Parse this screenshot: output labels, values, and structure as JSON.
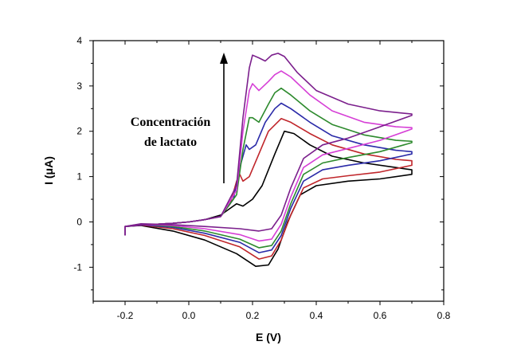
{
  "chart_data": {
    "type": "line",
    "title": "",
    "xlabel": "E (V)",
    "ylabel": "I (μA)",
    "xlim": [
      -0.3,
      0.8
    ],
    "ylim": [
      -1.75,
      4
    ],
    "xticks": [
      "-0.2",
      "0.0",
      "0.2",
      "0.4",
      "0.6",
      "0.8"
    ],
    "xtick_values": [
      -0.2,
      0.0,
      0.2,
      0.4,
      0.6,
      0.8
    ],
    "yticks": [
      "-1",
      "0",
      "1",
      "2",
      "3",
      "4"
    ],
    "ytick_values": [
      -1,
      0,
      1,
      2,
      3,
      4
    ],
    "grid": false,
    "legend": "none",
    "annotation": {
      "lines": [
        "Concentración",
        "de lactato"
      ],
      "arrow": "up"
    },
    "series": [
      {
        "color": "#000000",
        "forward": [
          [
            -0.2,
            -0.3
          ],
          [
            -0.2,
            -0.1
          ],
          [
            -0.15,
            -0.07
          ],
          [
            -0.05,
            -0.03
          ],
          [
            0.0,
            0.0
          ],
          [
            0.05,
            0.05
          ],
          [
            0.1,
            0.15
          ],
          [
            0.13,
            0.3
          ],
          [
            0.15,
            0.4
          ],
          [
            0.17,
            0.35
          ],
          [
            0.2,
            0.5
          ],
          [
            0.23,
            0.8
          ],
          [
            0.27,
            1.5
          ],
          [
            0.3,
            2.0
          ],
          [
            0.33,
            1.95
          ],
          [
            0.38,
            1.7
          ],
          [
            0.45,
            1.45
          ],
          [
            0.55,
            1.3
          ],
          [
            0.65,
            1.2
          ],
          [
            0.7,
            1.15
          ]
        ],
        "reverse": [
          [
            0.7,
            1.05
          ],
          [
            0.6,
            0.95
          ],
          [
            0.5,
            0.9
          ],
          [
            0.4,
            0.8
          ],
          [
            0.35,
            0.6
          ],
          [
            0.31,
            0.0
          ],
          [
            0.28,
            -0.6
          ],
          [
            0.25,
            -0.95
          ],
          [
            0.21,
            -0.98
          ],
          [
            0.15,
            -0.7
          ],
          [
            0.05,
            -0.4
          ],
          [
            -0.05,
            -0.2
          ],
          [
            -0.15,
            -0.08
          ],
          [
            -0.2,
            -0.1
          ]
        ]
      },
      {
        "color": "#c0262b",
        "forward": [
          [
            -0.2,
            -0.3
          ],
          [
            -0.2,
            -0.1
          ],
          [
            -0.15,
            -0.07
          ],
          [
            -0.05,
            -0.03
          ],
          [
            0.0,
            0.0
          ],
          [
            0.05,
            0.05
          ],
          [
            0.1,
            0.12
          ],
          [
            0.13,
            0.4
          ],
          [
            0.15,
            0.9
          ],
          [
            0.16,
            1.05
          ],
          [
            0.17,
            0.9
          ],
          [
            0.19,
            1.0
          ],
          [
            0.22,
            1.5
          ],
          [
            0.25,
            2.0
          ],
          [
            0.29,
            2.28
          ],
          [
            0.32,
            2.2
          ],
          [
            0.38,
            1.95
          ],
          [
            0.45,
            1.7
          ],
          [
            0.55,
            1.5
          ],
          [
            0.65,
            1.38
          ],
          [
            0.7,
            1.35
          ]
        ],
        "reverse": [
          [
            0.7,
            1.25
          ],
          [
            0.6,
            1.1
          ],
          [
            0.5,
            1.02
          ],
          [
            0.42,
            0.95
          ],
          [
            0.36,
            0.75
          ],
          [
            0.32,
            0.15
          ],
          [
            0.29,
            -0.4
          ],
          [
            0.26,
            -0.75
          ],
          [
            0.22,
            -0.82
          ],
          [
            0.16,
            -0.55
          ],
          [
            0.05,
            -0.3
          ],
          [
            -0.05,
            -0.15
          ],
          [
            -0.15,
            -0.07
          ],
          [
            -0.2,
            -0.1
          ]
        ]
      },
      {
        "color": "#2a2aa8",
        "forward": [
          [
            -0.2,
            -0.3
          ],
          [
            -0.2,
            -0.1
          ],
          [
            -0.15,
            -0.07
          ],
          [
            -0.05,
            -0.03
          ],
          [
            0.0,
            0.0
          ],
          [
            0.05,
            0.05
          ],
          [
            0.1,
            0.12
          ],
          [
            0.14,
            0.5
          ],
          [
            0.16,
            1.2
          ],
          [
            0.18,
            1.7
          ],
          [
            0.19,
            1.6
          ],
          [
            0.21,
            1.7
          ],
          [
            0.24,
            2.2
          ],
          [
            0.27,
            2.5
          ],
          [
            0.29,
            2.62
          ],
          [
            0.32,
            2.5
          ],
          [
            0.38,
            2.2
          ],
          [
            0.45,
            1.9
          ],
          [
            0.55,
            1.7
          ],
          [
            0.65,
            1.58
          ],
          [
            0.7,
            1.55
          ]
        ],
        "reverse": [
          [
            0.7,
            1.5
          ],
          [
            0.6,
            1.35
          ],
          [
            0.5,
            1.25
          ],
          [
            0.42,
            1.15
          ],
          [
            0.36,
            0.9
          ],
          [
            0.32,
            0.3
          ],
          [
            0.29,
            -0.3
          ],
          [
            0.26,
            -0.62
          ],
          [
            0.22,
            -0.68
          ],
          [
            0.16,
            -0.45
          ],
          [
            0.05,
            -0.25
          ],
          [
            -0.05,
            -0.12
          ],
          [
            -0.15,
            -0.06
          ],
          [
            -0.2,
            -0.1
          ]
        ]
      },
      {
        "color": "#2d8a2d",
        "forward": [
          [
            -0.2,
            -0.3
          ],
          [
            -0.2,
            -0.1
          ],
          [
            -0.15,
            -0.07
          ],
          [
            -0.05,
            -0.03
          ],
          [
            0.0,
            0.0
          ],
          [
            0.05,
            0.05
          ],
          [
            0.1,
            0.12
          ],
          [
            0.15,
            0.6
          ],
          [
            0.17,
            1.6
          ],
          [
            0.19,
            2.3
          ],
          [
            0.2,
            2.3
          ],
          [
            0.22,
            2.2
          ],
          [
            0.25,
            2.6
          ],
          [
            0.27,
            2.85
          ],
          [
            0.29,
            2.95
          ],
          [
            0.32,
            2.8
          ],
          [
            0.38,
            2.45
          ],
          [
            0.45,
            2.15
          ],
          [
            0.55,
            1.92
          ],
          [
            0.65,
            1.8
          ],
          [
            0.7,
            1.78
          ]
        ],
        "reverse": [
          [
            0.7,
            1.75
          ],
          [
            0.6,
            1.55
          ],
          [
            0.5,
            1.42
          ],
          [
            0.42,
            1.3
          ],
          [
            0.36,
            1.05
          ],
          [
            0.32,
            0.4
          ],
          [
            0.29,
            -0.2
          ],
          [
            0.26,
            -0.52
          ],
          [
            0.22,
            -0.57
          ],
          [
            0.16,
            -0.38
          ],
          [
            0.05,
            -0.2
          ],
          [
            -0.05,
            -0.1
          ],
          [
            -0.15,
            -0.05
          ],
          [
            -0.2,
            -0.1
          ]
        ]
      },
      {
        "color": "#d63fd6",
        "forward": [
          [
            -0.2,
            -0.3
          ],
          [
            -0.2,
            -0.1
          ],
          [
            -0.15,
            -0.07
          ],
          [
            -0.05,
            -0.03
          ],
          [
            0.0,
            0.0
          ],
          [
            0.05,
            0.05
          ],
          [
            0.1,
            0.12
          ],
          [
            0.15,
            0.7
          ],
          [
            0.17,
            2.0
          ],
          [
            0.19,
            2.9
          ],
          [
            0.2,
            3.05
          ],
          [
            0.22,
            2.9
          ],
          [
            0.25,
            3.1
          ],
          [
            0.27,
            3.25
          ],
          [
            0.29,
            3.33
          ],
          [
            0.32,
            3.2
          ],
          [
            0.38,
            2.8
          ],
          [
            0.45,
            2.45
          ],
          [
            0.55,
            2.2
          ],
          [
            0.65,
            2.1
          ],
          [
            0.7,
            2.08
          ]
        ],
        "reverse": [
          [
            0.7,
            2.05
          ],
          [
            0.6,
            1.8
          ],
          [
            0.5,
            1.62
          ],
          [
            0.42,
            1.48
          ],
          [
            0.36,
            1.2
          ],
          [
            0.32,
            0.55
          ],
          [
            0.29,
            -0.05
          ],
          [
            0.26,
            -0.38
          ],
          [
            0.22,
            -0.42
          ],
          [
            0.16,
            -0.28
          ],
          [
            0.05,
            -0.15
          ],
          [
            -0.05,
            -0.08
          ],
          [
            -0.15,
            -0.05
          ],
          [
            -0.2,
            -0.1
          ]
        ]
      },
      {
        "color": "#7b1f8c",
        "forward": [
          [
            -0.2,
            -0.3
          ],
          [
            -0.2,
            -0.1
          ],
          [
            -0.15,
            -0.07
          ],
          [
            -0.05,
            -0.03
          ],
          [
            0.0,
            0.0
          ],
          [
            0.05,
            0.05
          ],
          [
            0.1,
            0.12
          ],
          [
            0.15,
            0.8
          ],
          [
            0.17,
            2.3
          ],
          [
            0.19,
            3.4
          ],
          [
            0.2,
            3.68
          ],
          [
            0.22,
            3.62
          ],
          [
            0.24,
            3.55
          ],
          [
            0.26,
            3.68
          ],
          [
            0.28,
            3.72
          ],
          [
            0.3,
            3.65
          ],
          [
            0.34,
            3.3
          ],
          [
            0.4,
            2.9
          ],
          [
            0.5,
            2.6
          ],
          [
            0.6,
            2.45
          ],
          [
            0.7,
            2.38
          ]
        ],
        "reverse": [
          [
            0.7,
            2.35
          ],
          [
            0.6,
            2.1
          ],
          [
            0.5,
            1.85
          ],
          [
            0.42,
            1.7
          ],
          [
            0.36,
            1.4
          ],
          [
            0.32,
            0.75
          ],
          [
            0.29,
            0.15
          ],
          [
            0.26,
            -0.15
          ],
          [
            0.22,
            -0.2
          ],
          [
            0.16,
            -0.15
          ],
          [
            0.05,
            -0.1
          ],
          [
            -0.05,
            -0.06
          ],
          [
            -0.15,
            -0.04
          ],
          [
            -0.2,
            -0.1
          ]
        ]
      }
    ]
  }
}
